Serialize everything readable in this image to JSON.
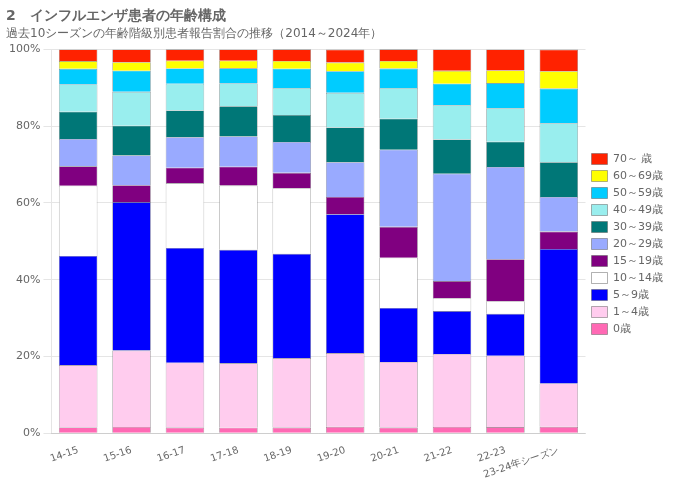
{
  "chart_data": {
    "type": "bar",
    "stacked": true,
    "title": "2　インフルエンザ患者の年齢構成",
    "subtitle": "過去10シーズンの年齢階級別患者報告割合の推移（2014～2024年）",
    "categories": [
      "14-15",
      "15-16",
      "16-17",
      "17-18",
      "18-19",
      "19-20",
      "20-21",
      "21-22",
      "22-23",
      "23-24年シーズン"
    ],
    "series": [
      {
        "name": "0歳",
        "color": "#ff69b4",
        "values": [
          1.52,
          1.65,
          1.49,
          1.47,
          1.5,
          1.69,
          1.5,
          1.67,
          1.63,
          1.69
        ]
      },
      {
        "name": "1～4歳",
        "color": "#ffccee",
        "values": [
          16.24,
          19.88,
          16.91,
          16.74,
          18.09,
          19.2,
          17.08,
          18.99,
          18.57,
          11.29
        ]
      },
      {
        "name": "5～9歳",
        "color": "#0000ff",
        "values": [
          28.42,
          38.67,
          29.85,
          29.55,
          27.13,
          36.15,
          14.07,
          11.17,
          10.92,
          35.02
        ]
      },
      {
        "name": "10～14歳",
        "color": "#ffffff",
        "values": [
          18.27,
          0,
          16.91,
          16.74,
          17.08,
          0,
          13.06,
          3.35,
          3.27,
          0
        ]
      },
      {
        "name": "15～19歳",
        "color": "#800080",
        "values": [
          5.07,
          4.41,
          3.98,
          4.92,
          4.02,
          4.51,
          8.04,
          4.46,
          10.92,
          4.51
        ]
      },
      {
        "name": "20～29歳",
        "color": "#99aaff",
        "values": [
          7.1,
          7.73,
          7.96,
          7.88,
          8.04,
          9.03,
          20.1,
          27.93,
          24.04,
          9.03
        ]
      },
      {
        "name": "30～39歳",
        "color": "#007777",
        "values": [
          7.1,
          7.73,
          6.96,
          7.88,
          7.03,
          9.03,
          8.04,
          8.93,
          6.55,
          9.03
        ]
      },
      {
        "name": "40～49歳",
        "color": "#99eeee",
        "values": [
          7.1,
          8.83,
          6.96,
          5.91,
          7.03,
          9.03,
          8.04,
          8.93,
          8.74,
          10.16
        ]
      },
      {
        "name": "50～59歳",
        "color": "#00ccff",
        "values": [
          4.06,
          5.52,
          3.98,
          3.94,
          5.02,
          5.64,
          5.02,
          5.58,
          6.55,
          9.03
        ]
      },
      {
        "name": "60～69歳",
        "color": "#ffff00",
        "values": [
          2.03,
          2.2,
          1.99,
          1.97,
          2.01,
          2.25,
          2.01,
          3.35,
          3.27,
          4.51
        ]
      },
      {
        "name": "70～ 歳",
        "color": "#ff2200",
        "values": [
          3.04,
          3.31,
          2.98,
          2.95,
          3.01,
          3.38,
          3.01,
          5.58,
          5.46,
          5.64
        ]
      }
    ],
    "ylim": [
      0,
      100
    ],
    "yticks": [
      {
        "value": 0,
        "label": "0%"
      },
      {
        "value": 20,
        "label": "20%"
      },
      {
        "value": 40,
        "label": "40%"
      },
      {
        "value": 60,
        "label": "60%"
      },
      {
        "value": 80,
        "label": "80%"
      },
      {
        "value": 100,
        "label": "100%"
      }
    ],
    "grid": true,
    "legend": "right"
  }
}
